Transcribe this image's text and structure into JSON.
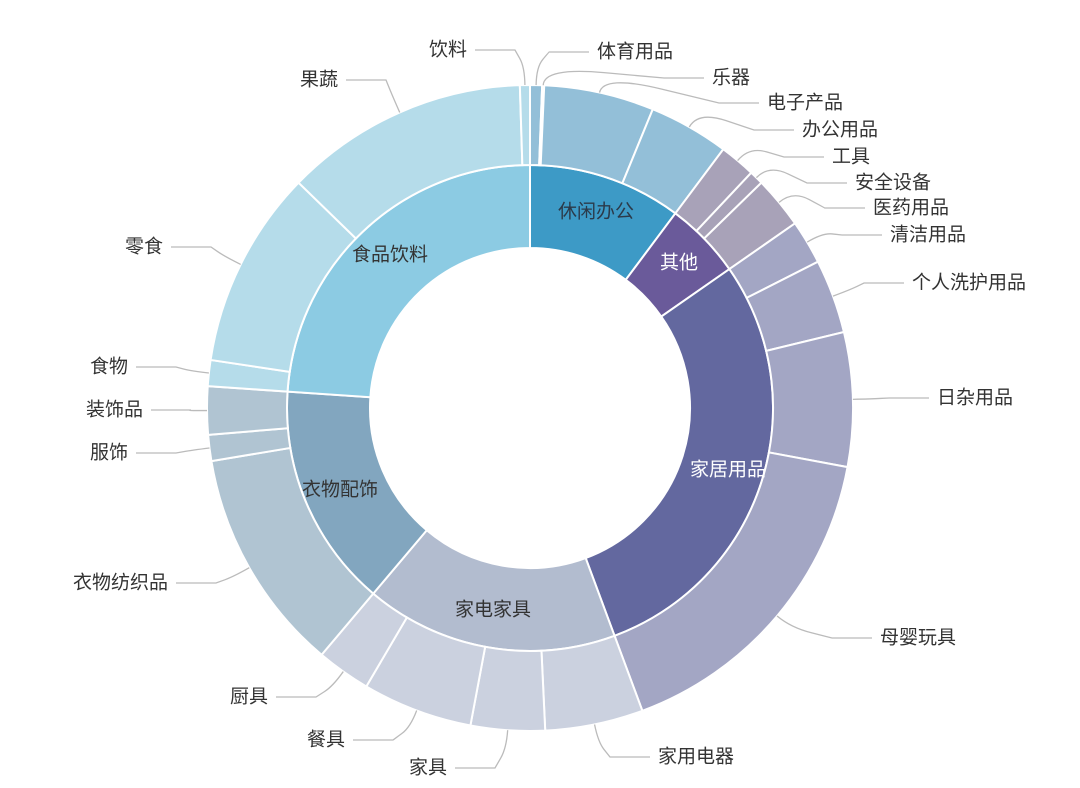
{
  "chart_data": {
    "type": "sunburst",
    "title": "",
    "unit": "percent of total (estimated)",
    "categories": [
      {
        "name": "休闲办公",
        "color": "#3d9ac6",
        "child_color": "#93bfd8",
        "text_color": "#2b3a4a",
        "children": [
          {
            "name": "体育用品",
            "value": 0.6
          },
          {
            "name": "乐器",
            "value": 0.1
          },
          {
            "name": "电子产品",
            "value": 5.5
          },
          {
            "name": "办公用品",
            "value": 4.0
          }
        ]
      },
      {
        "name": "其他",
        "color": "#6a5a9a",
        "child_color": "#a8a2b8",
        "text_color": "#ffffff",
        "children": [
          {
            "name": "工具",
            "value": 1.8
          },
          {
            "name": "安全设备",
            "value": 0.7
          },
          {
            "name": "医药用品",
            "value": 2.6
          }
        ]
      },
      {
        "name": "家居用品",
        "color": "#63689f",
        "child_color": "#a3a6c4",
        "text_color": "#ffffff",
        "children": [
          {
            "name": "清洁用品",
            "value": 2.2
          },
          {
            "name": "个人洗护用品",
            "value": 3.7
          },
          {
            "name": "日杂用品",
            "value": 6.7
          },
          {
            "name": "母婴玩具",
            "value": 16.4
          }
        ]
      },
      {
        "name": "家电家具",
        "color": "#b2bccf",
        "child_color": "#cbd1df",
        "text_color": "#333333",
        "children": [
          {
            "name": "家用电器",
            "value": 4.9
          },
          {
            "name": "家具",
            "value": 3.7
          },
          {
            "name": "餐具",
            "value": 5.5
          },
          {
            "name": "厨具",
            "value": 2.7
          }
        ]
      },
      {
        "name": "衣物配饰",
        "color": "#82a6bf",
        "child_color": "#b0c4d2",
        "text_color": "#333333",
        "children": [
          {
            "name": "衣物纺织品",
            "value": 11.2
          },
          {
            "name": "服饰",
            "value": 1.3
          },
          {
            "name": "装饰品",
            "value": 2.4
          }
        ]
      },
      {
        "name": "食品饮料",
        "color": "#8ccbe3",
        "child_color": "#b5dcea",
        "text_color": "#333333",
        "children": [
          {
            "name": "食物",
            "value": 1.3
          },
          {
            "name": "零食",
            "value": 9.9
          },
          {
            "name": "果蔬",
            "value": 12.2
          },
          {
            "name": "饮料",
            "value": 0.5
          }
        ]
      }
    ],
    "start_angle": "12 o'clock, clockwise",
    "legend": "none"
  }
}
